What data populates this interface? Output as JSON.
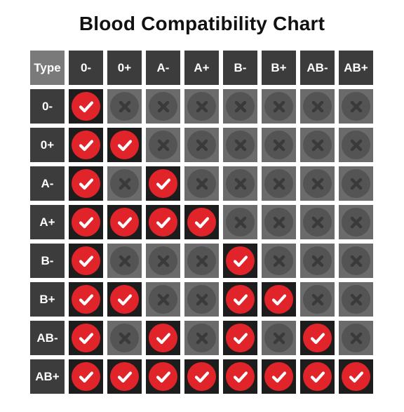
{
  "title": "Blood Compatibility Chart",
  "corner_label": "Type",
  "columns": [
    "0-",
    "0+",
    "A-",
    "A+",
    "B-",
    "B+",
    "AB-",
    "AB+"
  ],
  "rows": [
    {
      "label": "0-",
      "compatible": [
        true,
        false,
        false,
        false,
        false,
        false,
        false,
        false
      ]
    },
    {
      "label": "0+",
      "compatible": [
        true,
        true,
        false,
        false,
        false,
        false,
        false,
        false
      ]
    },
    {
      "label": "A-",
      "compatible": [
        true,
        false,
        true,
        false,
        false,
        false,
        false,
        false
      ]
    },
    {
      "label": "A+",
      "compatible": [
        true,
        true,
        true,
        true,
        false,
        false,
        false,
        false
      ]
    },
    {
      "label": "B-",
      "compatible": [
        true,
        false,
        false,
        false,
        true,
        false,
        false,
        false
      ]
    },
    {
      "label": "B+",
      "compatible": [
        true,
        true,
        false,
        false,
        true,
        true,
        false,
        false
      ]
    },
    {
      "label": "AB-",
      "compatible": [
        true,
        false,
        true,
        false,
        true,
        false,
        true,
        false
      ]
    },
    {
      "label": "AB+",
      "compatible": [
        true,
        true,
        true,
        true,
        true,
        true,
        true,
        true
      ]
    }
  ],
  "icons": {
    "compatible": "check-icon",
    "incompatible": "x-icon"
  },
  "colors": {
    "check_circle": "#e0242a",
    "compatible_bg": "#1d1d1d",
    "incompatible_bg": "#6b6b6b",
    "incompatible_circle": "#545454",
    "header_bg": "#3c3c3c",
    "corner_bg": "#7a7a7a"
  }
}
